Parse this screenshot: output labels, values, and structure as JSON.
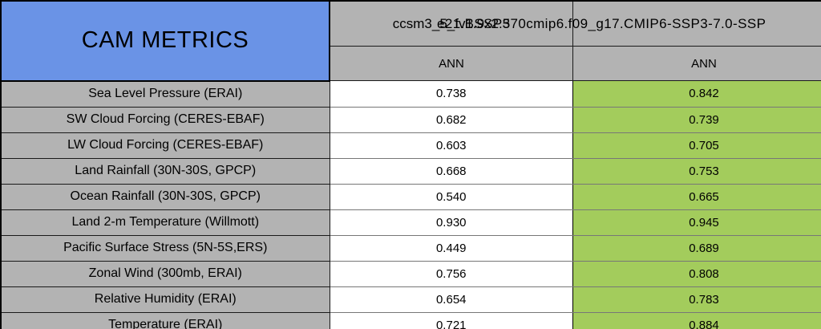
{
  "chart_data": {
    "type": "table",
    "title": "CAM METRICS",
    "columns": [
      {
        "model": "ccsm3_5_fv1.9x2.5",
        "season": "ANN"
      },
      {
        "model": "e21.BSSP370cmip6.f09_g17.CMIP6-SSP3-7.0-SSP",
        "season": "ANN"
      }
    ],
    "rows": [
      {
        "label": "Sea Level Pressure (ERAI)",
        "values": [
          "0.738",
          "0.842"
        ]
      },
      {
        "label": "SW Cloud Forcing (CERES-EBAF)",
        "values": [
          "0.682",
          "0.739"
        ]
      },
      {
        "label": "LW Cloud Forcing (CERES-EBAF)",
        "values": [
          "0.603",
          "0.705"
        ]
      },
      {
        "label": "Land Rainfall (30N-30S, GPCP)",
        "values": [
          "0.668",
          "0.753"
        ]
      },
      {
        "label": "Ocean Rainfall (30N-30S, GPCP)",
        "values": [
          "0.540",
          "0.665"
        ]
      },
      {
        "label": "Land 2-m Temperature (Willmott)",
        "values": [
          "0.930",
          "0.945"
        ]
      },
      {
        "label": "Pacific Surface Stress (5N-5S,ERS)",
        "values": [
          "0.449",
          "0.689"
        ]
      },
      {
        "label": "Zonal Wind (300mb, ERAI)",
        "values": [
          "0.756",
          "0.808"
        ]
      },
      {
        "label": "Relative Humidity (ERAI)",
        "values": [
          "0.654",
          "0.783"
        ]
      },
      {
        "label": "Temperature (ERAI)",
        "values": [
          "0.721",
          "0.884"
        ]
      }
    ],
    "colors": {
      "title_blue": "#6A93E6",
      "header_gray": "#B3B3B3",
      "value_green": "#A3CC5C",
      "value_white": "#FFFFFF",
      "border": "#000000"
    },
    "layout_hints": {
      "legend_position": "none",
      "grid": "cell-borders",
      "note": "second model header text overflows its cell and is clipped at right image edge"
    }
  }
}
